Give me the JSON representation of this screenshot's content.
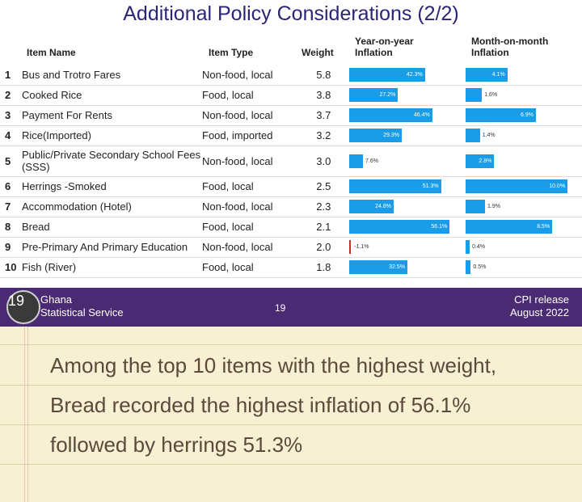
{
  "slide": {
    "title": "Additional Policy Considerations (2/2)",
    "headers": {
      "item_name": "Item Name",
      "item_type": "Item Type",
      "weight": "Weight",
      "yoy_line1": "Year-on-year",
      "yoy_line2": "Inflation",
      "mom_line1": "Month-on-month",
      "mom_line2": "Inflation"
    },
    "rows": [
      {
        "num": "1",
        "name": "Bus and Trotro Fares",
        "type": "Non-food, local",
        "weight": "5.8",
        "yoy": "42.3%",
        "mom": "4.1%"
      },
      {
        "num": "2",
        "name": "Cooked Rice",
        "type": "Food, local",
        "weight": "3.8",
        "yoy": "27.2%",
        "mom": "1.6%"
      },
      {
        "num": "3",
        "name": "Payment For Rents",
        "type": "Non-food, local",
        "weight": "3.7",
        "yoy": "46.4%",
        "mom": "6.9%"
      },
      {
        "num": "4",
        "name": "Rice(Imported)",
        "type": "Food, imported",
        "weight": "3.2",
        "yoy": "29.3%",
        "mom": "1.4%"
      },
      {
        "num": "5",
        "name": "Public/Private Secondary School Fees (SSS)",
        "type": "Non-food, local",
        "weight": "3.0",
        "yoy": "7.6%",
        "mom": "2.8%"
      },
      {
        "num": "6",
        "name": "Herrings -Smoked",
        "type": "Food, local",
        "weight": "2.5",
        "yoy": "51.3%",
        "mom": "10.0%"
      },
      {
        "num": "7",
        "name": "Accommodation (Hotel)",
        "type": "Non-food, local",
        "weight": "2.3",
        "yoy": "24.8%",
        "mom": "1.9%"
      },
      {
        "num": "8",
        "name": "Bread",
        "type": "Food, local",
        "weight": "2.1",
        "yoy": "56.1%",
        "mom": "8.5%"
      },
      {
        "num": "9",
        "name": "Pre-Primary And Primary Education",
        "type": "Non-food, local",
        "weight": "2.0",
        "yoy": "-1.1%",
        "mom": "0.4%"
      },
      {
        "num": "10",
        "name": "Fish (River)",
        "type": "Food, local",
        "weight": "1.8",
        "yoy": "32.5%",
        "mom": "0.5%"
      }
    ],
    "footer": {
      "logo_number": "19",
      "org_line1": "Ghana",
      "org_line2": "Statistical Service",
      "page": "19",
      "release_line1": "CPI release",
      "release_line2": "August  2022"
    }
  },
  "note": {
    "line1": "Among the top 10 items with the highest weight,",
    "line2": "Bread recorded the highest inflation of 56.1%",
    "line3": "followed by herrings 51.3%"
  },
  "colors": {
    "title": "#2b2577",
    "bar": "#1a9ce8",
    "negative_bar": "#cc2b2b",
    "footer_bg": "#4a2a73",
    "note_bg": "#f8f0d2",
    "note_text": "#5b4a3c"
  },
  "chart_data": [
    {
      "type": "bar",
      "title": "",
      "xlabel": "",
      "ylabel": "Year-on-year Inflation",
      "categories": [
        "Bus and Trotro Fares",
        "Cooked Rice",
        "Payment For Rents",
        "Rice(Imported)",
        "Public/Private Secondary School Fees (SSS)",
        "Herrings -Smoked",
        "Accommodation (Hotel)",
        "Bread",
        "Pre-Primary And Primary Education",
        "Fish (River)"
      ],
      "values": [
        42.3,
        27.2,
        46.4,
        29.3,
        7.6,
        51.3,
        24.8,
        56.1,
        -1.1,
        32.5
      ],
      "xlim": [
        -2,
        57
      ]
    },
    {
      "type": "bar",
      "title": "",
      "xlabel": "",
      "ylabel": "Month-on-month Inflation",
      "categories": [
        "Bus and Trotro Fares",
        "Cooked Rice",
        "Payment For Rents",
        "Rice(Imported)",
        "Public/Private Secondary School Fees (SSS)",
        "Herrings -Smoked",
        "Accommodation (Hotel)",
        "Bread",
        "Pre-Primary And Primary Education",
        "Fish (River)"
      ],
      "values": [
        4.1,
        1.6,
        6.9,
        1.4,
        2.8,
        10.0,
        1.9,
        8.5,
        0.4,
        0.5
      ],
      "xlim": [
        0,
        10
      ]
    }
  ]
}
